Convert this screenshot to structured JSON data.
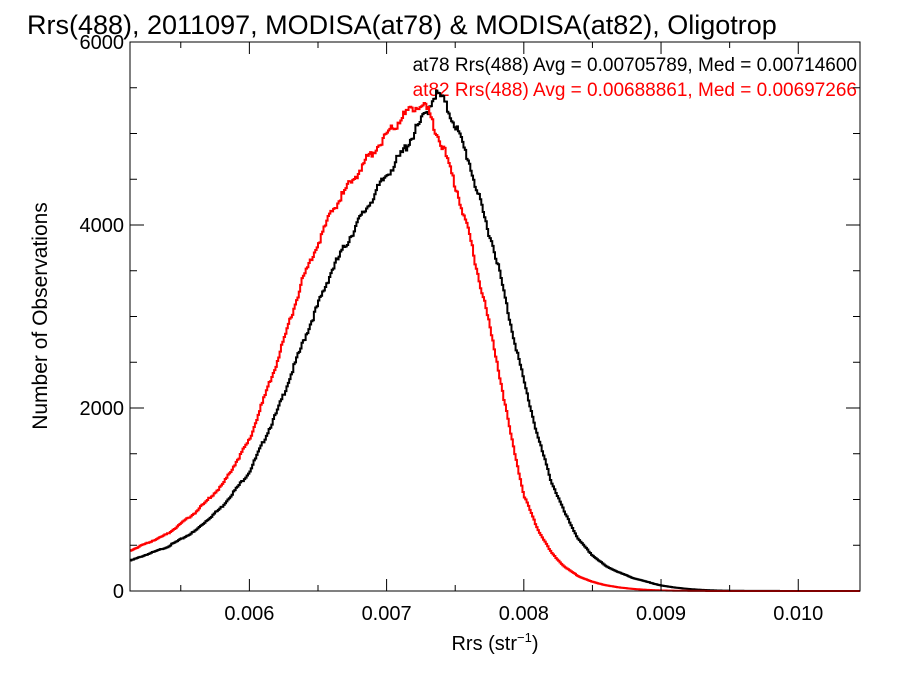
{
  "chart_data": {
    "type": "line",
    "title": "Rrs(488), 2011097, MODISA(at78) & MODISA(at82), Oligotrop",
    "xlabel": "Rrs (str",
    "xlabel_sup": "−1",
    "xlabel_close": ")",
    "ylabel": "Number of Observations",
    "xlim": [
      0.00513,
      0.01045
    ],
    "ylim": [
      0,
      6000
    ],
    "xticks": [
      0.006,
      0.007,
      0.008,
      0.009,
      0.01
    ],
    "xtick_labels": [
      "0.006",
      "0.007",
      "0.008",
      "0.009",
      "0.010"
    ],
    "yticks": [
      0,
      2000,
      4000,
      6000
    ],
    "ytick_labels": [
      "0",
      "2000",
      "4000",
      "6000"
    ],
    "grid": false,
    "legend_position": "top-right",
    "annotations": [
      "at78 Rrs(488) Avg = 0.00705789, Med = 0.00714600",
      "at82 Rrs(488) Avg = 0.00688861, Med = 0.00697266"
    ],
    "series": [
      {
        "name": "at78",
        "color": "#000000",
        "x": [
          0.00513,
          0.0054,
          0.0056,
          0.0058,
          0.006,
          0.0062,
          0.0064,
          0.0066,
          0.0068,
          0.007,
          0.0071,
          0.0072,
          0.0073,
          0.00735,
          0.0074,
          0.0075,
          0.0076,
          0.0077,
          0.0078,
          0.0079,
          0.008,
          0.0081,
          0.0082,
          0.0083,
          0.0084,
          0.0085,
          0.0086,
          0.0087,
          0.0088,
          0.0089,
          0.009,
          0.0091,
          0.0092,
          0.0093,
          0.0094,
          0.0095,
          0.0096,
          0.0098,
          0.01,
          0.01045
        ],
        "y": [
          330,
          480,
          650,
          920,
          1300,
          1950,
          2750,
          3500,
          4050,
          4550,
          4750,
          5000,
          5250,
          5430,
          5400,
          5100,
          4700,
          4150,
          3650,
          2950,
          2300,
          1700,
          1200,
          850,
          560,
          390,
          270,
          200,
          140,
          100,
          60,
          38,
          22,
          12,
          6,
          3,
          2,
          1,
          0,
          0
        ]
      },
      {
        "name": "at82",
        "color": "#ff0000",
        "x": [
          0.00513,
          0.0054,
          0.0056,
          0.0058,
          0.006,
          0.0062,
          0.0064,
          0.0066,
          0.0068,
          0.0069,
          0.007,
          0.0071,
          0.0072,
          0.00725,
          0.0073,
          0.0074,
          0.0075,
          0.0076,
          0.0077,
          0.0078,
          0.0079,
          0.008,
          0.0081,
          0.0082,
          0.0083,
          0.0084,
          0.0085,
          0.0086,
          0.0087,
          0.0088,
          0.0089,
          0.009,
          0.0091,
          0.0092,
          0.0093,
          0.0094,
          0.0095,
          0.0096,
          0.0098,
          0.01,
          0.01045
        ],
        "y": [
          440,
          620,
          850,
          1150,
          1650,
          2500,
          3450,
          4150,
          4600,
          4800,
          5000,
          5150,
          5300,
          5330,
          5250,
          4900,
          4450,
          3900,
          3250,
          2550,
          1750,
          1050,
          680,
          420,
          260,
          160,
          100,
          62,
          38,
          22,
          12,
          6,
          3,
          2,
          1,
          0,
          0,
          0,
          0,
          0,
          0
        ]
      }
    ]
  }
}
